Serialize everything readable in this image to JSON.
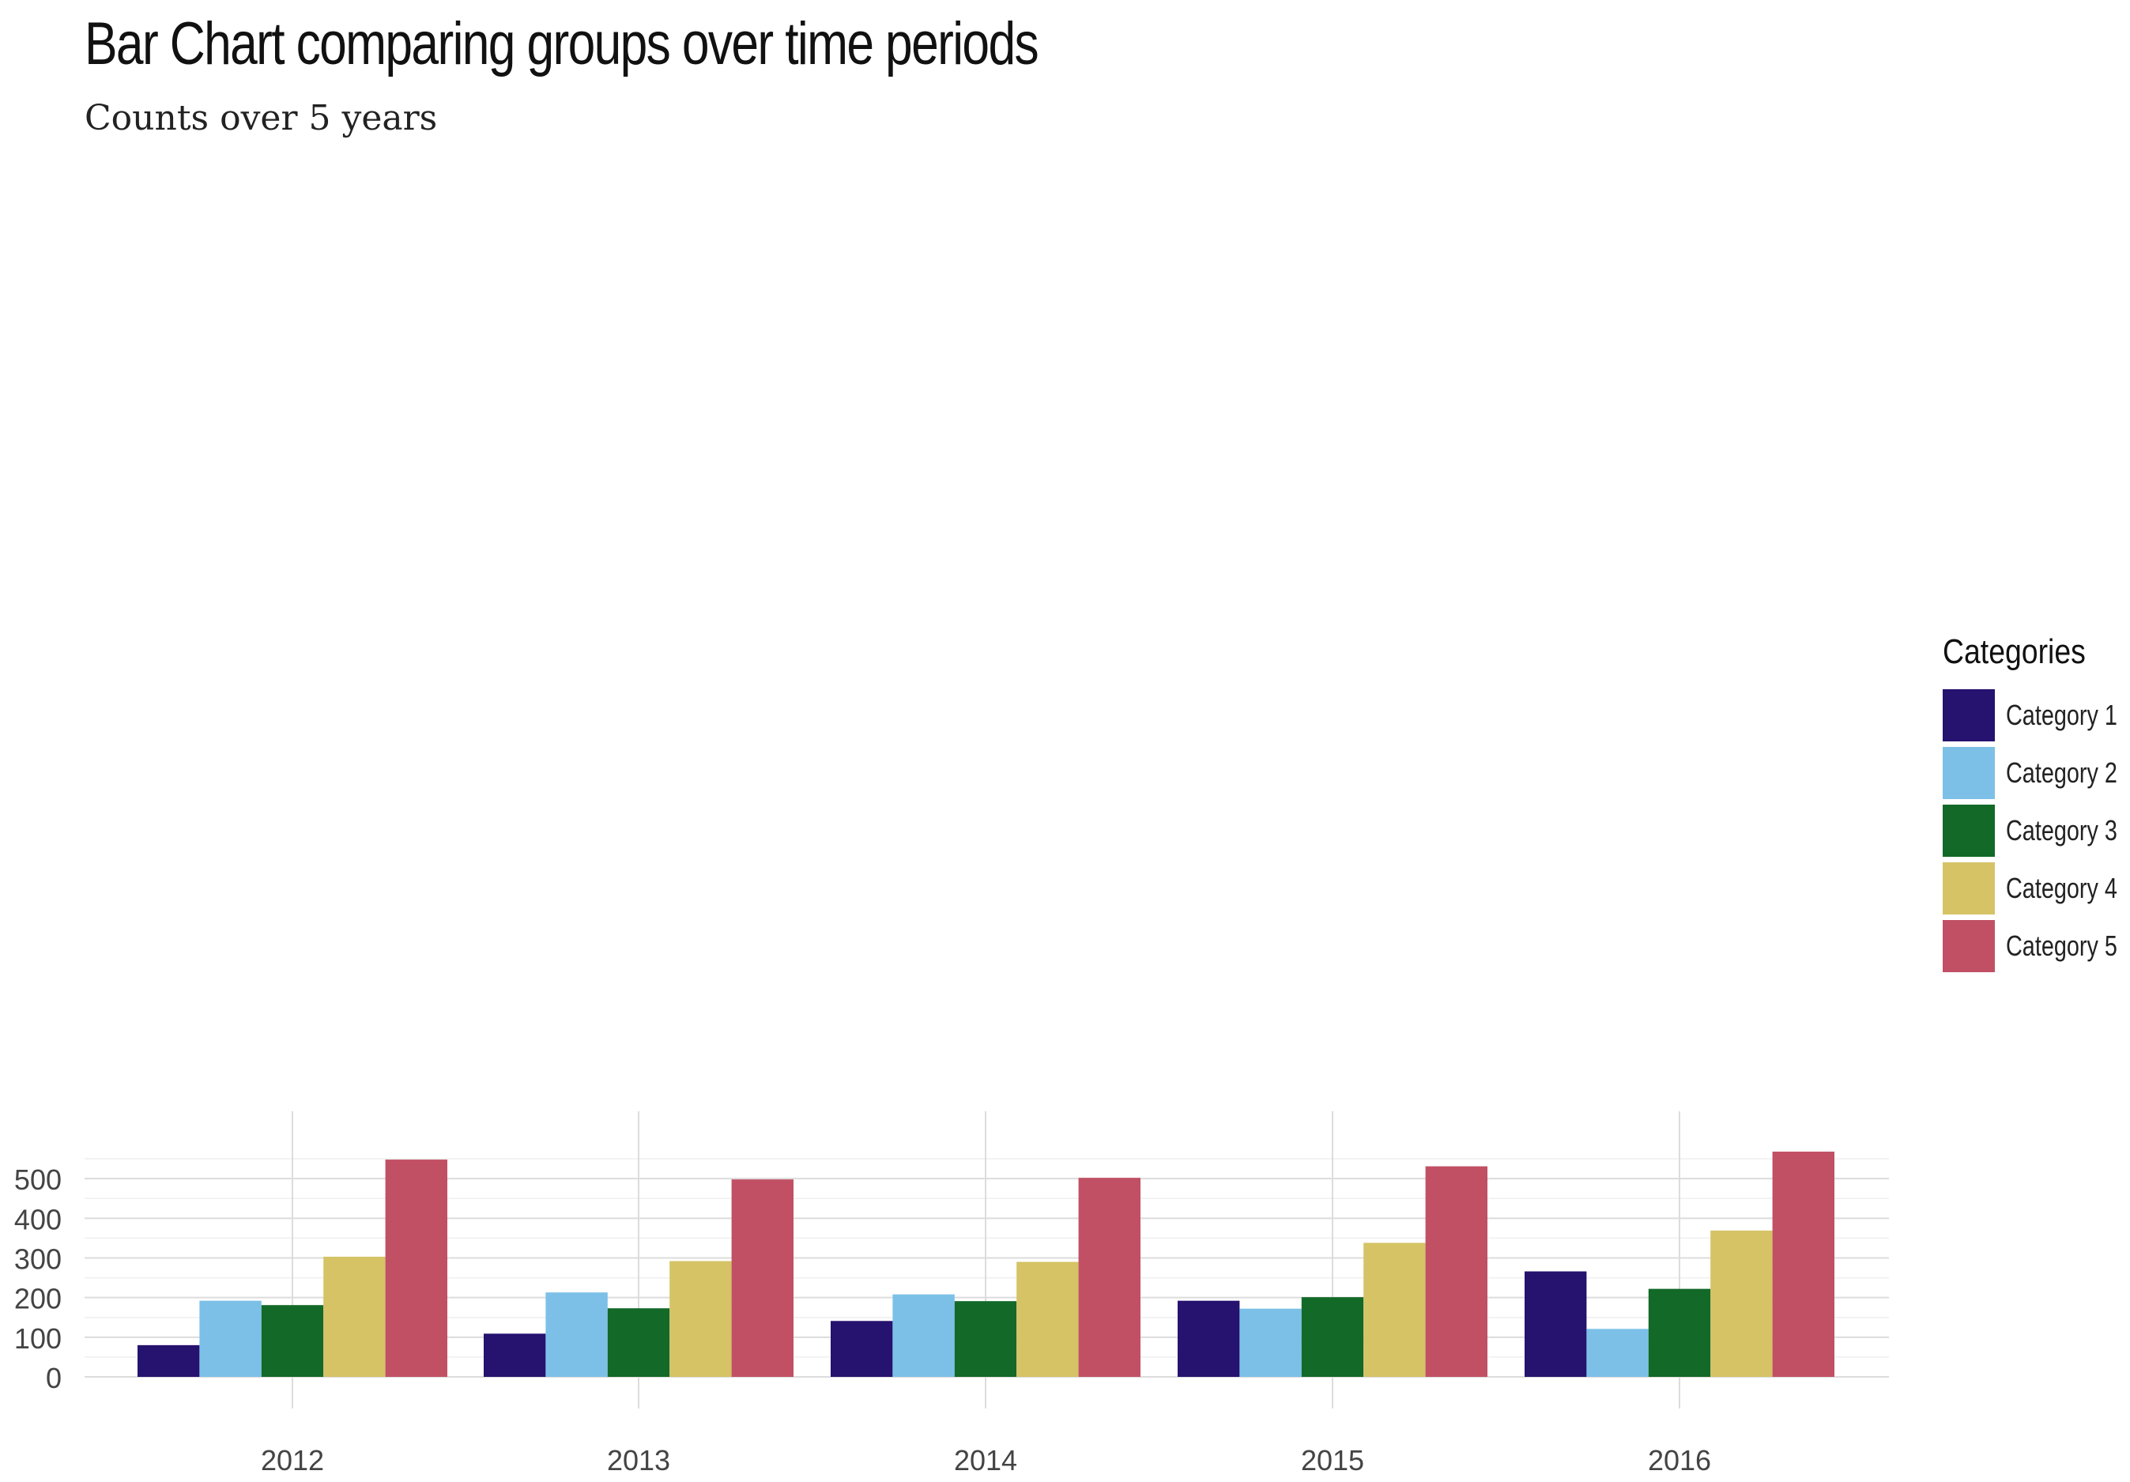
{
  "title": "Bar Chart comparing groups over time periods",
  "subtitle": "Counts over 5 years",
  "legend": {
    "title": "Categories"
  },
  "chart_data": {
    "type": "bar",
    "title": "Bar Chart comparing groups over time periods",
    "subtitle": "Counts over 5 years",
    "xlabel": "",
    "ylabel": "",
    "categories": [
      "2012",
      "2013",
      "2014",
      "2015",
      "2016"
    ],
    "series": [
      {
        "name": "Category 1",
        "color": "#26126f",
        "values": [
          80,
          109,
          141,
          192,
          266
        ]
      },
      {
        "name": "Category 2",
        "color": "#7cc0e8",
        "values": [
          192,
          213,
          208,
          172,
          121
        ]
      },
      {
        "name": "Category 3",
        "color": "#136928",
        "values": [
          181,
          173,
          191,
          201,
          222
        ]
      },
      {
        "name": "Category 4",
        "color": "#d5c366",
        "values": [
          303,
          292,
          290,
          338,
          369
        ]
      },
      {
        "name": "Category 5",
        "color": "#c15065",
        "values": [
          548,
          498,
          502,
          531,
          568
        ]
      }
    ],
    "yticks": [
      0,
      100,
      200,
      300,
      400,
      500
    ],
    "ylim": [
      0,
      590
    ],
    "grid": true,
    "legend_position": "right"
  }
}
